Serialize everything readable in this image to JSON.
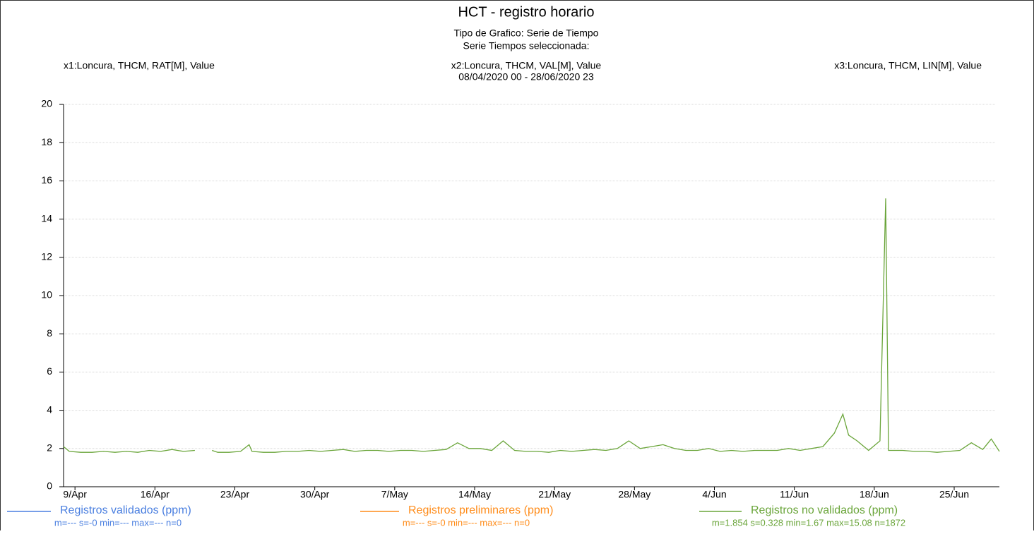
{
  "chart_data": {
    "type": "line",
    "title": "HCT - registro horario",
    "subtitle_lines": [
      "Tipo de Grafico: Serie de Tiempo",
      "Serie Tiempos seleccionada:",
      "08/04/2020 00 - 28/06/2020 23"
    ],
    "series_labels": [
      "x1:Loncura, THCM, RAT[M], Value",
      "x2:Loncura, THCM, VAL[M], Value",
      "x3:Loncura, THCM, LIN[M], Value"
    ],
    "xlim": [
      "2020-04-08T00",
      "2020-06-28T23"
    ],
    "xticks": [
      {
        "value": "2020-04-09T00",
        "label": "9/Apr"
      },
      {
        "value": "2020-04-16T00",
        "label": "16/Apr"
      },
      {
        "value": "2020-04-23T00",
        "label": "23/Apr"
      },
      {
        "value": "2020-04-30T00",
        "label": "30/Apr"
      },
      {
        "value": "2020-05-07T00",
        "label": "7/May"
      },
      {
        "value": "2020-05-14T00",
        "label": "14/May"
      },
      {
        "value": "2020-05-21T00",
        "label": "21/May"
      },
      {
        "value": "2020-05-28T00",
        "label": "28/May"
      },
      {
        "value": "2020-06-04T00",
        "label": "4/Jun"
      },
      {
        "value": "2020-06-11T00",
        "label": "11/Jun"
      },
      {
        "value": "2020-06-18T00",
        "label": "18/Jun"
      },
      {
        "value": "2020-06-25T00",
        "label": "25/Jun"
      }
    ],
    "ylim": [
      0,
      20
    ],
    "yticks": [
      0,
      2,
      4,
      6,
      8,
      10,
      12,
      14,
      16,
      18,
      20
    ],
    "grid": true,
    "series": [
      {
        "name": "Registros validados (ppm)",
        "color": "#4a7fe0",
        "stats": "m=--- s=-0 min=--- max=--- n=0",
        "x": [],
        "values": []
      },
      {
        "name": "Registros preliminares (ppm)",
        "color": "#ff8c1a",
        "stats": "m=--- s=-0 min=--- max=--- n=0",
        "x": [],
        "values": []
      },
      {
        "name": "Registros no validados (ppm)",
        "color": "#6aa53a",
        "stats": "m=1.854 s=0.328 min=1.67 max=15.08 n=1872",
        "x": [
          "2020-04-08T00",
          "2020-04-08T12",
          "2020-04-09T12",
          "2020-04-10T12",
          "2020-04-11T12",
          "2020-04-12T12",
          "2020-04-13T12",
          "2020-04-14T12",
          "2020-04-15T12",
          "2020-04-16T12",
          "2020-04-17T12",
          "2020-04-18T12",
          "2020-04-19T12",
          "2020-04-20T12",
          "2020-04-21T00",
          "2020-04-21T12",
          "2020-04-22T12",
          "2020-04-23T12",
          "2020-04-24T06",
          "2020-04-24T12",
          "2020-04-25T12",
          "2020-04-26T12",
          "2020-04-27T12",
          "2020-04-28T12",
          "2020-04-29T12",
          "2020-04-30T12",
          "2020-05-01T12",
          "2020-05-02T12",
          "2020-05-03T12",
          "2020-05-04T12",
          "2020-05-05T12",
          "2020-05-06T12",
          "2020-05-07T12",
          "2020-05-08T12",
          "2020-05-09T12",
          "2020-05-10T12",
          "2020-05-11T12",
          "2020-05-12T12",
          "2020-05-13T12",
          "2020-05-14T12",
          "2020-05-15T12",
          "2020-05-16T12",
          "2020-05-17T12",
          "2020-05-18T12",
          "2020-05-19T12",
          "2020-05-20T12",
          "2020-05-21T12",
          "2020-05-22T12",
          "2020-05-23T12",
          "2020-05-24T12",
          "2020-05-25T12",
          "2020-05-26T12",
          "2020-05-27T12",
          "2020-05-28T12",
          "2020-05-29T12",
          "2020-05-30T12",
          "2020-05-31T12",
          "2020-06-01T12",
          "2020-06-02T12",
          "2020-06-03T12",
          "2020-06-04T12",
          "2020-06-05T12",
          "2020-06-06T12",
          "2020-06-07T12",
          "2020-06-08T12",
          "2020-06-09T12",
          "2020-06-10T12",
          "2020-06-11T12",
          "2020-06-12T12",
          "2020-06-13T12",
          "2020-06-14T12",
          "2020-06-15T06",
          "2020-06-15T18",
          "2020-06-16T12",
          "2020-06-17T12",
          "2020-06-18T12",
          "2020-06-19T00",
          "2020-06-19T06",
          "2020-06-20T12",
          "2020-06-21T12",
          "2020-06-22T12",
          "2020-06-23T12",
          "2020-06-24T12",
          "2020-06-25T12",
          "2020-06-26T12",
          "2020-06-27T12",
          "2020-06-28T06",
          "2020-06-28T23"
        ],
        "values": [
          2.1,
          1.85,
          1.8,
          1.8,
          1.85,
          1.8,
          1.85,
          1.8,
          1.9,
          1.85,
          1.95,
          1.85,
          1.9,
          null,
          1.9,
          1.8,
          1.8,
          1.85,
          2.2,
          1.85,
          1.8,
          1.8,
          1.85,
          1.85,
          1.9,
          1.85,
          1.9,
          1.95,
          1.85,
          1.9,
          1.9,
          1.85,
          1.9,
          1.9,
          1.85,
          1.9,
          1.95,
          2.3,
          2.0,
          2.0,
          1.9,
          2.4,
          1.9,
          1.85,
          1.85,
          1.8,
          1.9,
          1.85,
          1.9,
          1.95,
          1.9,
          2.0,
          2.4,
          2.0,
          2.1,
          2.2,
          2.0,
          1.9,
          1.9,
          2.0,
          1.85,
          1.9,
          1.85,
          1.9,
          1.9,
          1.9,
          2.0,
          1.9,
          2.0,
          2.1,
          2.8,
          3.8,
          2.7,
          2.4,
          1.9,
          2.4,
          15.08,
          1.9,
          1.9,
          1.85,
          1.85,
          1.8,
          1.85,
          1.9,
          2.3,
          1.95,
          2.5,
          1.85
        ]
      }
    ]
  }
}
